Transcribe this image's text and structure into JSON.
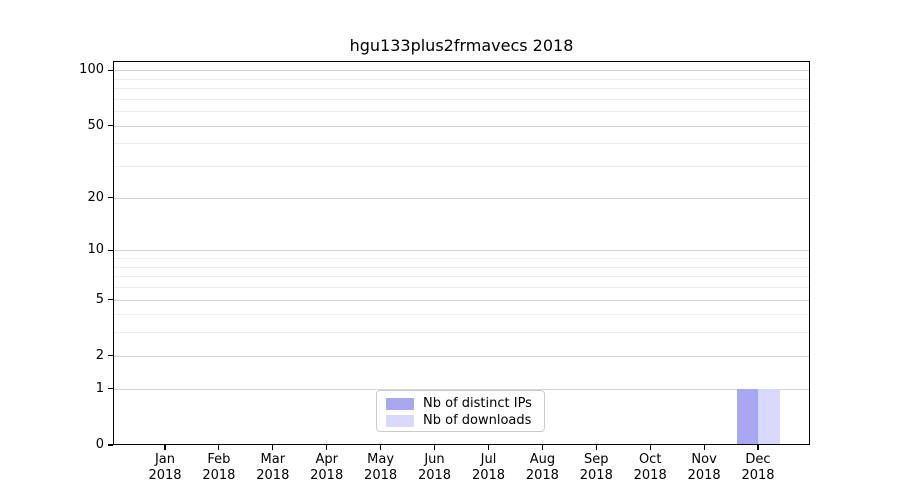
{
  "title": "hgu133plus2frmavecs 2018",
  "chart_data": {
    "type": "bar",
    "title": "hgu133plus2frmavecs 2018",
    "categories": [
      "Jan",
      "Feb",
      "Mar",
      "Apr",
      "May",
      "Jun",
      "Jul",
      "Aug",
      "Sep",
      "Oct",
      "Nov",
      "Dec"
    ],
    "category_year": "2018",
    "series": [
      {
        "name": "Nb of distinct IPs",
        "color": "#a8a8f2",
        "values": [
          0,
          0,
          0,
          0,
          0,
          0,
          0,
          0,
          0,
          0,
          0,
          1
        ]
      },
      {
        "name": "Nb of downloads",
        "color": "#d8d8f8",
        "values": [
          0,
          0,
          0,
          0,
          0,
          0,
          0,
          0,
          0,
          0,
          0,
          1
        ]
      }
    ],
    "xlabel": "",
    "ylabel": "",
    "yscale": "log1p",
    "ylim": [
      0,
      112
    ],
    "yticks_major": [
      0,
      1,
      2,
      5,
      10,
      20,
      50,
      100
    ],
    "yticks_minor": [
      3,
      4,
      6,
      7,
      8,
      9,
      30,
      40,
      60,
      70,
      80,
      90
    ],
    "grid": "horizontal",
    "legend_position": "lower center"
  },
  "colors": {
    "bar_distinct_ips": "#a8a8f2",
    "bar_downloads": "#d8d8f8",
    "grid_major": "#d4d4d4",
    "grid_minor": "#ededed",
    "spine": "#000000",
    "text": "#000000",
    "legend_border": "#cbcbcb"
  }
}
